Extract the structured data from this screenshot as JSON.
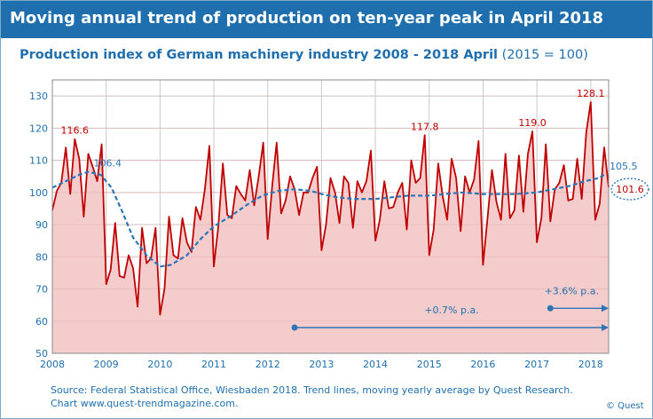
{
  "header": {
    "title": "Moving annual trend of production on ten-year peak in April 2018"
  },
  "subtitle": {
    "main": "Production index of German machinery industry 2008 - 2018 April",
    "unit": "(2015 = 100)"
  },
  "footer": {
    "source": "Source: Federal Statistical Office, Wiesbaden 2018. Trend lines, moving yearly average by Quest Research.",
    "chart_link": "Chart www.quest-trendmagazine.com.",
    "copyright": "© Quest"
  },
  "colors": {
    "banner": "#1f6fae",
    "production_line": "#c00000",
    "production_fill": "#f4cccc",
    "trend_line": "#2e75b6",
    "grid": "#c9c9c9"
  },
  "chart_data": {
    "type": "area",
    "title": "Production index of German machinery industry 2008 - 2018 April",
    "xlabel": "",
    "ylabel": "",
    "xlim": [
      2008,
      2018.333
    ],
    "ylim": [
      50,
      135
    ],
    "x_ticks": [
      "2008",
      "2009",
      "2010",
      "2011",
      "2012",
      "2013",
      "2014",
      "2015",
      "2016",
      "2017",
      "2018"
    ],
    "y_ticks": [
      50,
      60,
      70,
      80,
      90,
      100,
      110,
      120,
      130
    ],
    "grid": true,
    "series": [
      {
        "role": "production_index",
        "start": "2008-01",
        "frequency": "monthly",
        "values": [
          94.5,
          100.5,
          103.0,
          114.0,
          99.5,
          116.6,
          110.5,
          92.5,
          112.0,
          108.0,
          103.5,
          115.0,
          71.5,
          76.0,
          90.5,
          74.0,
          73.5,
          80.5,
          76.5,
          64.5,
          89.0,
          78.0,
          79.5,
          89.0,
          62.0,
          70.0,
          92.5,
          80.5,
          79.5,
          92.0,
          84.5,
          81.5,
          95.5,
          91.5,
          101.0,
          114.5,
          77.0,
          89.5,
          109.0,
          93.0,
          92.0,
          102.0,
          99.5,
          97.5,
          107.0,
          96.0,
          105.0,
          115.5,
          85.5,
          102.0,
          115.5,
          93.5,
          97.5,
          105.0,
          101.0,
          93.0,
          100.0,
          100.0,
          104.5,
          108.0,
          82.0,
          90.0,
          104.5,
          100.0,
          90.5,
          105.0,
          103.0,
          89.0,
          103.5,
          100.0,
          103.5,
          113.0,
          85.0,
          91.5,
          103.5,
          95.0,
          95.5,
          100.0,
          103.0,
          88.5,
          110.0,
          103.0,
          104.5,
          117.8,
          80.5,
          88.5,
          109.0,
          99.0,
          91.5,
          110.5,
          104.5,
          88.0,
          105.0,
          100.0,
          104.0,
          116.0,
          77.5,
          92.0,
          107.0,
          97.0,
          91.5,
          112.0,
          92.0,
          94.5,
          111.5,
          94.0,
          112.0,
          119.0,
          84.5,
          92.0,
          115.0,
          91.0,
          101.0,
          103.0,
          108.5,
          97.5,
          98.0,
          110.5,
          98.0,
          118.5,
          128.1,
          91.5,
          96.5,
          114.0,
          101.6
        ]
      },
      {
        "role": "moving_annual_trend",
        "points": [
          [
            2008.0,
            101.5
          ],
          [
            2008.5,
            105.5
          ],
          [
            2008.667,
            106.4
          ],
          [
            2008.9,
            105.5
          ],
          [
            2009.1,
            101.5
          ],
          [
            2009.3,
            94.0
          ],
          [
            2009.5,
            86.0
          ],
          [
            2009.75,
            80.5
          ],
          [
            2010.0,
            77.0
          ],
          [
            2010.2,
            77.5
          ],
          [
            2010.5,
            80.5
          ],
          [
            2010.75,
            85.5
          ],
          [
            2011.0,
            89.5
          ],
          [
            2011.3,
            92.5
          ],
          [
            2011.6,
            96.0
          ],
          [
            2011.9,
            99.0
          ],
          [
            2012.2,
            100.5
          ],
          [
            2012.5,
            101.0
          ],
          [
            2012.8,
            100.5
          ],
          [
            2013.0,
            99.5
          ],
          [
            2013.3,
            98.5
          ],
          [
            2013.6,
            98.0
          ],
          [
            2014.0,
            98.0
          ],
          [
            2014.3,
            98.5
          ],
          [
            2014.6,
            99.0
          ],
          [
            2015.0,
            99.0
          ],
          [
            2015.3,
            99.5
          ],
          [
            2015.6,
            100.0
          ],
          [
            2016.0,
            99.5
          ],
          [
            2016.3,
            99.5
          ],
          [
            2016.6,
            99.5
          ],
          [
            2017.0,
            100.0
          ],
          [
            2017.3,
            101.0
          ],
          [
            2017.6,
            102.0
          ],
          [
            2017.9,
            103.5
          ],
          [
            2018.15,
            104.5
          ],
          [
            2018.25,
            105.5
          ]
        ]
      }
    ],
    "annotations": [
      {
        "text": "116.6",
        "x": 2008.417,
        "y": 116.6,
        "color": "#c00000",
        "anchor": "above"
      },
      {
        "text": "117.8",
        "x": 2014.917,
        "y": 117.8,
        "color": "#c00000",
        "anchor": "above"
      },
      {
        "text": "119.0",
        "x": 2016.917,
        "y": 119.0,
        "color": "#c00000",
        "anchor": "above"
      },
      {
        "text": "128.1",
        "x": 2018.0,
        "y": 128.1,
        "color": "#c00000",
        "anchor": "above"
      },
      {
        "text": "106.4",
        "x": 2008.667,
        "y": 106.4,
        "color": "#2e75b6",
        "anchor": "right-above"
      },
      {
        "text": "105.5",
        "x": 2018.25,
        "y": 105.5,
        "color": "#2e75b6",
        "anchor": "right-above"
      },
      {
        "text": "101.6",
        "x": 2018.333,
        "y": 101.6,
        "color": "#c00000",
        "anchor": "right-ellipse"
      }
    ],
    "growth_arrows": [
      {
        "label": "+0.7% p.a.",
        "x_start": 2012.5,
        "x_end": 2018.333,
        "y": 58
      },
      {
        "label": "+3.6% p.a.",
        "x_start": 2017.25,
        "x_end": 2018.333,
        "y": 64
      }
    ]
  }
}
